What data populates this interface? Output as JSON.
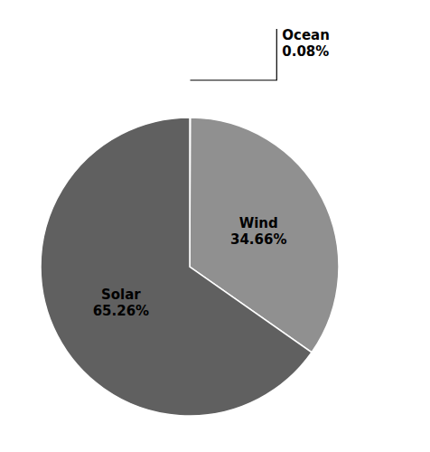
{
  "chart_data": {
    "type": "pie",
    "categories": [
      "Ocean",
      "Wind",
      "Solar"
    ],
    "values": [
      0.08,
      34.66,
      65.26
    ],
    "value_labels": [
      "0.08%",
      "34.66%",
      "65.26%"
    ],
    "colors": [
      "#e8e8e8",
      "#909090",
      "#606060"
    ],
    "data_labels": true
  }
}
